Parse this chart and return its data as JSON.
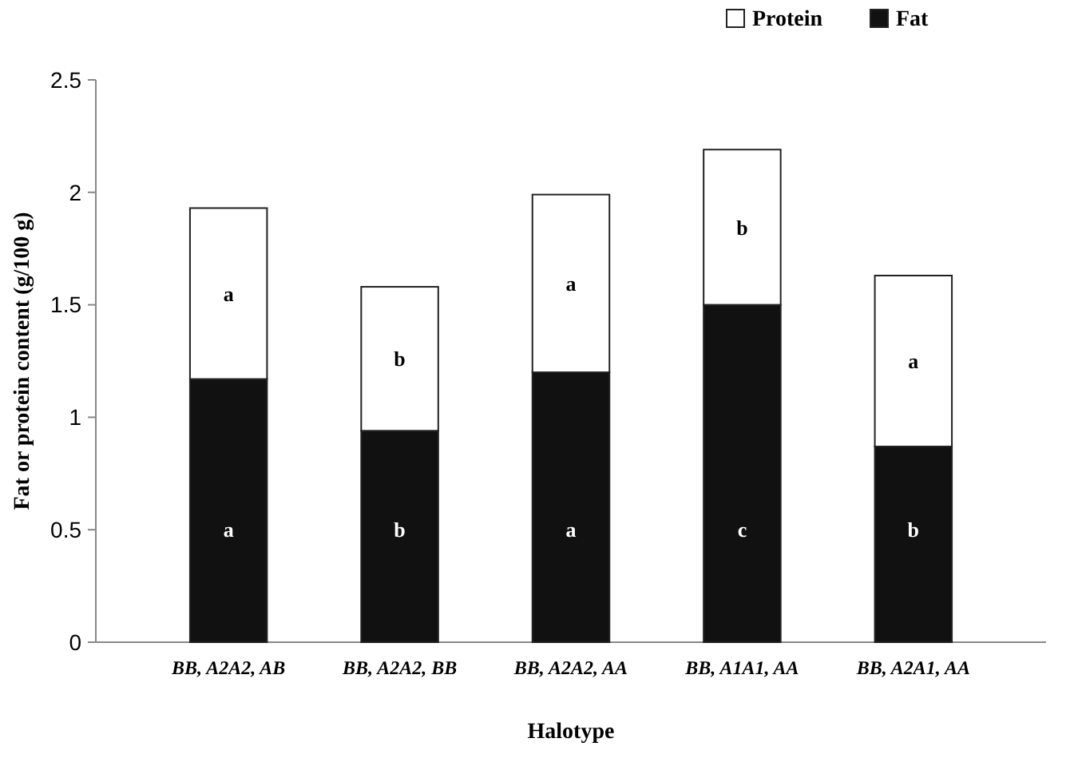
{
  "chart_data": {
    "type": "bar",
    "stacked": true,
    "xlabel": "Halotype",
    "ylabel": "Fat or protein content (g/100 g)",
    "categories": [
      "BB, A2A2, AB",
      "BB, A2A2, BB",
      "BB, A2A2, AA",
      "BB, A1A1, AA",
      "BB, A2A1, AA"
    ],
    "series": [
      {
        "name": "Fat",
        "color": "#111111",
        "values": [
          1.17,
          0.94,
          1.2,
          1.5,
          0.87
        ]
      },
      {
        "name": "Protein",
        "color": "#ffffff",
        "values": [
          0.76,
          0.64,
          0.79,
          0.69,
          0.76
        ]
      }
    ],
    "ylim": [
      0,
      2.5
    ],
    "yticks": [
      0,
      0.5,
      1,
      1.5,
      2,
      2.5
    ],
    "grid": false,
    "legend": "top right",
    "annotations": [
      "a",
      "b",
      "a",
      "c",
      "b",
      "a",
      "b",
      "a",
      "b",
      "a"
    ]
  }
}
